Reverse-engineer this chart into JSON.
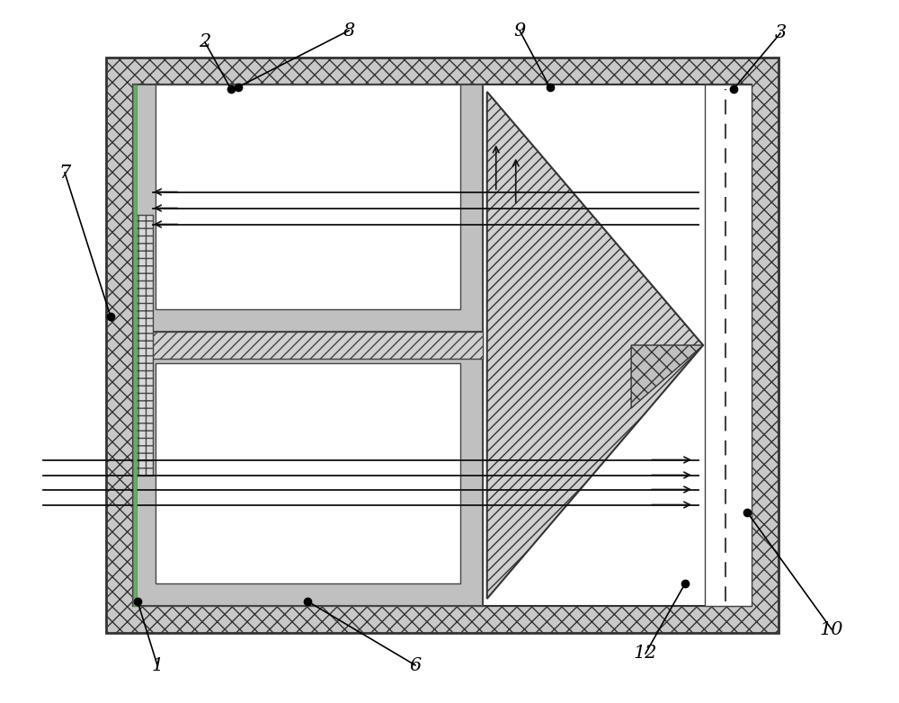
{
  "fig_width": 10.0,
  "fig_height": 7.82,
  "dpi": 100,
  "bg_color": "#ffffff",
  "lc_outer": "#444444",
  "lc_inner": "#555555",
  "fc_cross": "#c8c8c8",
  "fc_speckle": "#c0c0c0",
  "fc_diag": "#d0d0d0",
  "fc_white": "#ffffff",
  "fc_green_line": "#6a9a6a"
}
